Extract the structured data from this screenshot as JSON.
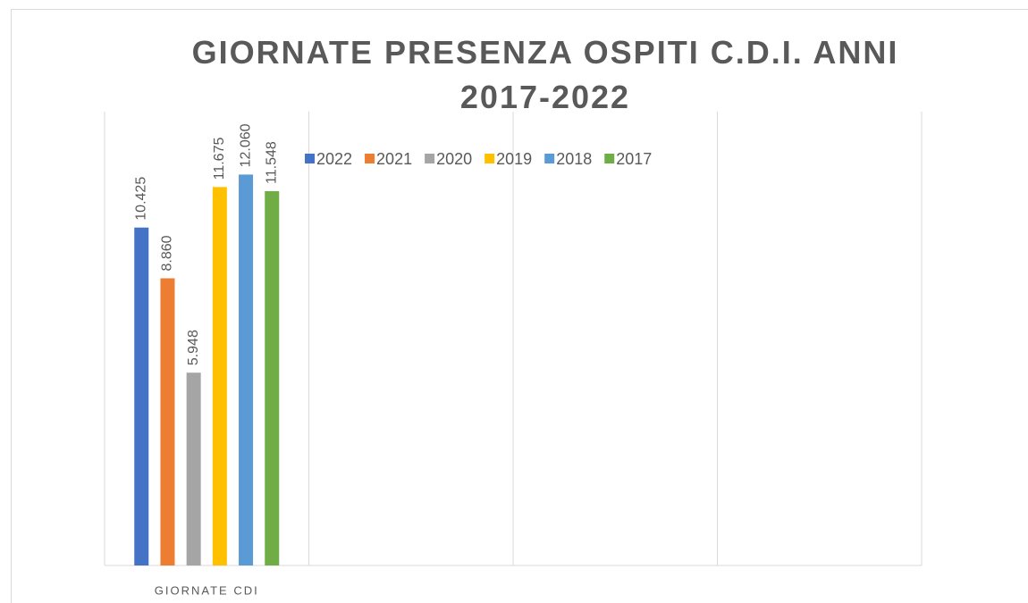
{
  "chart_data": {
    "type": "bar",
    "title": "GIORNATE PRESENZA OSPITI C.D.I. ANNI 2017-2022",
    "categories": [
      "GIORNATE CDI",
      null,
      null,
      null
    ],
    "series": [
      {
        "name": "2022",
        "color": "#4472c4",
        "values": [
          10425,
          null,
          null,
          null
        ],
        "value_labels": [
          "10.425",
          null,
          null,
          null
        ]
      },
      {
        "name": "2021",
        "color": "#ed7d31",
        "values": [
          8860,
          null,
          null,
          null
        ],
        "value_labels": [
          "8.860",
          null,
          null,
          null
        ]
      },
      {
        "name": "2020",
        "color": "#a5a5a5",
        "values": [
          5948,
          null,
          null,
          null
        ],
        "value_labels": [
          "5.948",
          null,
          null,
          null
        ]
      },
      {
        "name": "2019",
        "color": "#ffc000",
        "values": [
          11675,
          null,
          null,
          null
        ],
        "value_labels": [
          "11.675",
          null,
          null,
          null
        ]
      },
      {
        "name": "2018",
        "color": "#5b9bd5",
        "values": [
          12060,
          null,
          null,
          null
        ],
        "value_labels": [
          "12.060",
          null,
          null,
          null
        ]
      },
      {
        "name": "2017",
        "color": "#70ad47",
        "values": [
          11548,
          null,
          null,
          null
        ],
        "value_labels": [
          "11.548",
          null,
          null,
          null
        ]
      }
    ],
    "ylim": [
      0,
      14000
    ],
    "legend": "top"
  }
}
